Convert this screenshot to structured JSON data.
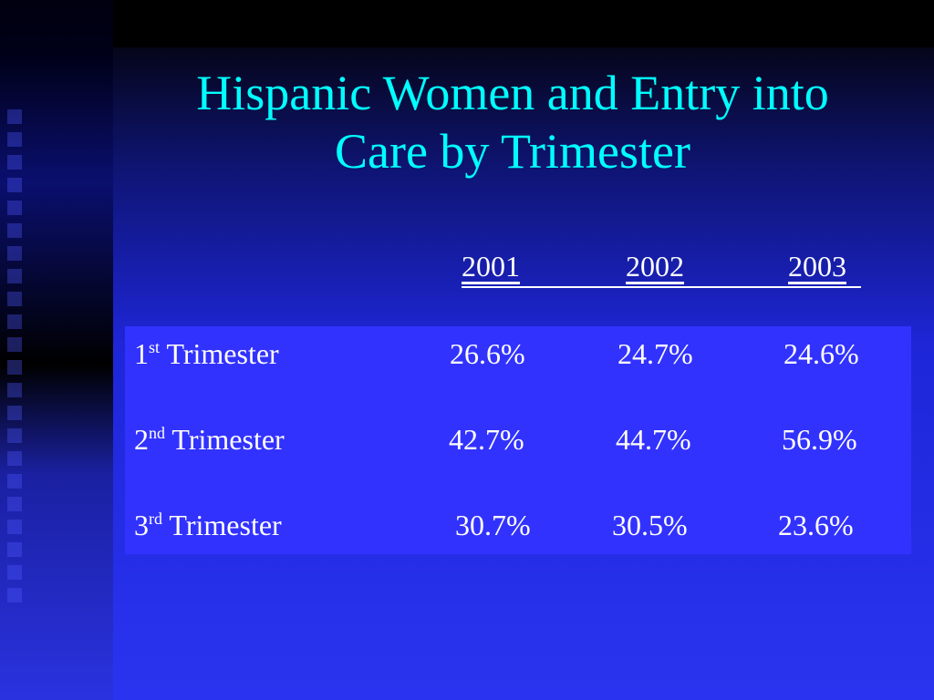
{
  "slide": {
    "title_line1": "Hispanic Women and Entry into",
    "title_line2": "Care by Trimester"
  },
  "table": {
    "columns": [
      "2001",
      "2002",
      "2003"
    ],
    "rows": [
      {
        "ordinal": "1",
        "suffix": "st",
        "label": "Trimester",
        "values": [
          "26.6%",
          "24.7%",
          "24.6%"
        ]
      },
      {
        "ordinal": "2",
        "suffix": "nd",
        "label": "Trimester",
        "values": [
          "42.7%",
          "44.7%",
          "56.9%"
        ]
      },
      {
        "ordinal": "3",
        "suffix": "rd",
        "label": "Trimester",
        "values": [
          "30.7%",
          "30.5%",
          "23.6%"
        ]
      }
    ]
  },
  "colors": {
    "title": "#00ffff",
    "table_background": "#3232ff",
    "text": "#ffffff"
  }
}
